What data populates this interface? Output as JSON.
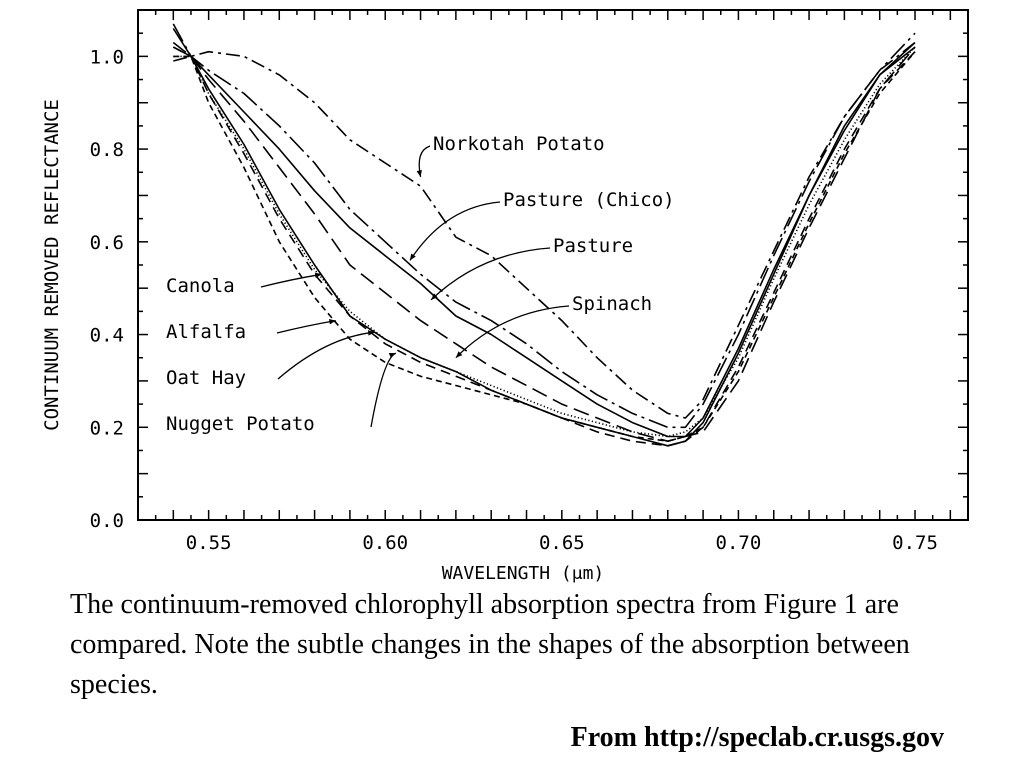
{
  "chart_data": {
    "type": "line",
    "xlabel": "WAVELENGTH (μm)",
    "ylabel": "CONTINUUM REMOVED REFLECTANCE",
    "xlim": [
      0.53,
      0.765
    ],
    "ylim": [
      0.0,
      1.1
    ],
    "xticks": [
      "0.55",
      "0.60",
      "0.65",
      "0.70",
      "0.75"
    ],
    "yticks": [
      "0.0",
      "0.2",
      "0.4",
      "0.6",
      "0.8",
      "1.0"
    ],
    "grid": false,
    "series": [
      {
        "name": "Norkotah Potato",
        "style": "dashdot",
        "points": [
          [
            0.54,
            0.99
          ],
          [
            0.55,
            1.01
          ],
          [
            0.56,
            1.0
          ],
          [
            0.57,
            0.96
          ],
          [
            0.58,
            0.9
          ],
          [
            0.59,
            0.82
          ],
          [
            0.6,
            0.77
          ],
          [
            0.61,
            0.72
          ],
          [
            0.62,
            0.61
          ],
          [
            0.63,
            0.57
          ],
          [
            0.64,
            0.5
          ],
          [
            0.65,
            0.43
          ],
          [
            0.66,
            0.35
          ],
          [
            0.67,
            0.28
          ],
          [
            0.68,
            0.23
          ],
          [
            0.685,
            0.22
          ],
          [
            0.69,
            0.26
          ],
          [
            0.7,
            0.42
          ],
          [
            0.71,
            0.58
          ],
          [
            0.72,
            0.74
          ],
          [
            0.73,
            0.87
          ],
          [
            0.74,
            0.97
          ],
          [
            0.75,
            1.03
          ]
        ]
      },
      {
        "name": "Pasture (Chico)",
        "style": "longdashdot",
        "points": [
          [
            0.54,
            1.07
          ],
          [
            0.545,
            1.0
          ],
          [
            0.55,
            0.97
          ],
          [
            0.56,
            0.92
          ],
          [
            0.57,
            0.85
          ],
          [
            0.58,
            0.77
          ],
          [
            0.59,
            0.67
          ],
          [
            0.6,
            0.6
          ],
          [
            0.61,
            0.53
          ],
          [
            0.62,
            0.47
          ],
          [
            0.63,
            0.43
          ],
          [
            0.64,
            0.38
          ],
          [
            0.65,
            0.32
          ],
          [
            0.66,
            0.27
          ],
          [
            0.67,
            0.23
          ],
          [
            0.68,
            0.2
          ],
          [
            0.685,
            0.2
          ],
          [
            0.69,
            0.25
          ],
          [
            0.7,
            0.4
          ],
          [
            0.71,
            0.57
          ],
          [
            0.72,
            0.73
          ],
          [
            0.73,
            0.87
          ],
          [
            0.74,
            0.97
          ],
          [
            0.75,
            1.05
          ]
        ]
      },
      {
        "name": "Pasture",
        "style": "solid",
        "points": [
          [
            0.54,
            1.06
          ],
          [
            0.545,
            1.0
          ],
          [
            0.55,
            0.96
          ],
          [
            0.56,
            0.88
          ],
          [
            0.57,
            0.8
          ],
          [
            0.58,
            0.71
          ],
          [
            0.59,
            0.63
          ],
          [
            0.6,
            0.57
          ],
          [
            0.61,
            0.51
          ],
          [
            0.62,
            0.44
          ],
          [
            0.63,
            0.4
          ],
          [
            0.64,
            0.35
          ],
          [
            0.65,
            0.3
          ],
          [
            0.66,
            0.25
          ],
          [
            0.67,
            0.21
          ],
          [
            0.68,
            0.18
          ],
          [
            0.685,
            0.18
          ],
          [
            0.69,
            0.22
          ],
          [
            0.7,
            0.37
          ],
          [
            0.71,
            0.54
          ],
          [
            0.72,
            0.7
          ],
          [
            0.73,
            0.84
          ],
          [
            0.74,
            0.96
          ],
          [
            0.75,
            1.03
          ]
        ]
      },
      {
        "name": "Spinach",
        "style": "longdash",
        "points": [
          [
            0.54,
            1.03
          ],
          [
            0.545,
            1.0
          ],
          [
            0.55,
            0.95
          ],
          [
            0.56,
            0.86
          ],
          [
            0.57,
            0.76
          ],
          [
            0.58,
            0.66
          ],
          [
            0.59,
            0.55
          ],
          [
            0.6,
            0.49
          ],
          [
            0.61,
            0.43
          ],
          [
            0.62,
            0.38
          ],
          [
            0.63,
            0.33
          ],
          [
            0.64,
            0.29
          ],
          [
            0.65,
            0.25
          ],
          [
            0.66,
            0.22
          ],
          [
            0.67,
            0.19
          ],
          [
            0.68,
            0.17
          ],
          [
            0.685,
            0.18
          ],
          [
            0.69,
            0.19
          ],
          [
            0.7,
            0.3
          ],
          [
            0.71,
            0.47
          ],
          [
            0.72,
            0.63
          ],
          [
            0.73,
            0.78
          ],
          [
            0.74,
            0.93
          ],
          [
            0.75,
            1.02
          ]
        ]
      },
      {
        "name": "Canola",
        "style": "solid",
        "points": [
          [
            0.54,
            1.02
          ],
          [
            0.545,
            1.0
          ],
          [
            0.55,
            0.93
          ],
          [
            0.56,
            0.81
          ],
          [
            0.57,
            0.67
          ],
          [
            0.58,
            0.55
          ],
          [
            0.59,
            0.44
          ],
          [
            0.6,
            0.39
          ],
          [
            0.61,
            0.35
          ],
          [
            0.62,
            0.32
          ],
          [
            0.63,
            0.28
          ],
          [
            0.64,
            0.25
          ],
          [
            0.65,
            0.22
          ],
          [
            0.66,
            0.2
          ],
          [
            0.67,
            0.18
          ],
          [
            0.68,
            0.16
          ],
          [
            0.685,
            0.17
          ],
          [
            0.69,
            0.21
          ],
          [
            0.7,
            0.36
          ],
          [
            0.71,
            0.53
          ],
          [
            0.72,
            0.7
          ],
          [
            0.73,
            0.85
          ],
          [
            0.74,
            0.96
          ],
          [
            0.75,
            1.02
          ]
        ]
      },
      {
        "name": "Alfalfa",
        "style": "dashed",
        "points": [
          [
            0.54,
            1.02
          ],
          [
            0.545,
            1.0
          ],
          [
            0.55,
            0.92
          ],
          [
            0.56,
            0.79
          ],
          [
            0.57,
            0.65
          ],
          [
            0.58,
            0.53
          ],
          [
            0.59,
            0.44
          ],
          [
            0.6,
            0.38
          ],
          [
            0.61,
            0.34
          ],
          [
            0.62,
            0.31
          ],
          [
            0.63,
            0.28
          ],
          [
            0.64,
            0.25
          ],
          [
            0.65,
            0.22
          ],
          [
            0.66,
            0.19
          ],
          [
            0.67,
            0.17
          ],
          [
            0.68,
            0.16
          ],
          [
            0.685,
            0.17
          ],
          [
            0.69,
            0.2
          ],
          [
            0.7,
            0.33
          ],
          [
            0.71,
            0.49
          ],
          [
            0.72,
            0.65
          ],
          [
            0.73,
            0.8
          ],
          [
            0.74,
            0.93
          ],
          [
            0.75,
            1.01
          ]
        ]
      },
      {
        "name": "Oat Hay",
        "style": "dotted",
        "points": [
          [
            0.54,
            1.0
          ],
          [
            0.545,
            1.0
          ],
          [
            0.55,
            0.92
          ],
          [
            0.56,
            0.8
          ],
          [
            0.57,
            0.66
          ],
          [
            0.58,
            0.54
          ],
          [
            0.59,
            0.45
          ],
          [
            0.6,
            0.39
          ],
          [
            0.61,
            0.35
          ],
          [
            0.62,
            0.32
          ],
          [
            0.63,
            0.29
          ],
          [
            0.64,
            0.26
          ],
          [
            0.65,
            0.23
          ],
          [
            0.66,
            0.21
          ],
          [
            0.67,
            0.19
          ],
          [
            0.68,
            0.18
          ],
          [
            0.685,
            0.19
          ],
          [
            0.69,
            0.22
          ],
          [
            0.7,
            0.35
          ],
          [
            0.71,
            0.52
          ],
          [
            0.72,
            0.68
          ],
          [
            0.73,
            0.82
          ],
          [
            0.74,
            0.94
          ],
          [
            0.75,
            1.02
          ]
        ]
      },
      {
        "name": "Nugget Potato",
        "style": "shortdash",
        "points": [
          [
            0.54,
            1.0
          ],
          [
            0.545,
            1.0
          ],
          [
            0.55,
            0.9
          ],
          [
            0.56,
            0.76
          ],
          [
            0.57,
            0.6
          ],
          [
            0.58,
            0.48
          ],
          [
            0.59,
            0.39
          ],
          [
            0.6,
            0.34
          ],
          [
            0.61,
            0.31
          ],
          [
            0.62,
            0.29
          ],
          [
            0.63,
            0.27
          ],
          [
            0.64,
            0.25
          ],
          [
            0.65,
            0.22
          ],
          [
            0.66,
            0.2
          ],
          [
            0.67,
            0.18
          ],
          [
            0.68,
            0.17
          ],
          [
            0.685,
            0.18
          ],
          [
            0.69,
            0.2
          ],
          [
            0.7,
            0.32
          ],
          [
            0.71,
            0.48
          ],
          [
            0.72,
            0.64
          ],
          [
            0.73,
            0.79
          ],
          [
            0.74,
            0.92
          ],
          [
            0.75,
            1.01
          ]
        ]
      }
    ],
    "annotations": [
      {
        "text": "Norkotah Potato",
        "series": "Norkotah Potato",
        "at": [
          0.61,
          0.74
        ]
      },
      {
        "text": "Pasture  (Chico)",
        "series": "Pasture (Chico)",
        "at": [
          0.607,
          0.56
        ]
      },
      {
        "text": "Pasture",
        "series": "Pasture",
        "at": [
          0.613,
          0.475
        ]
      },
      {
        "text": "Spinach",
        "series": "Spinach",
        "at": [
          0.62,
          0.35
        ]
      },
      {
        "text": "Canola",
        "series": "Canola",
        "at": [
          0.582,
          0.53
        ]
      },
      {
        "text": "Alfalfa",
        "series": "Alfalfa",
        "at": [
          0.586,
          0.43
        ]
      },
      {
        "text": "Oat Hay",
        "series": "Oat Hay",
        "at": [
          0.597,
          0.405
        ]
      },
      {
        "text": "Nugget Potato",
        "series": "Nugget Potato",
        "at": [
          0.603,
          0.36
        ]
      }
    ]
  },
  "caption": "The continuum-removed chlorophyll absorption spectra from Figure 1 are compared. Note the subtle changes in the shapes of the absorption between species.",
  "source": "From http://speclab.cr.usgs.gov"
}
